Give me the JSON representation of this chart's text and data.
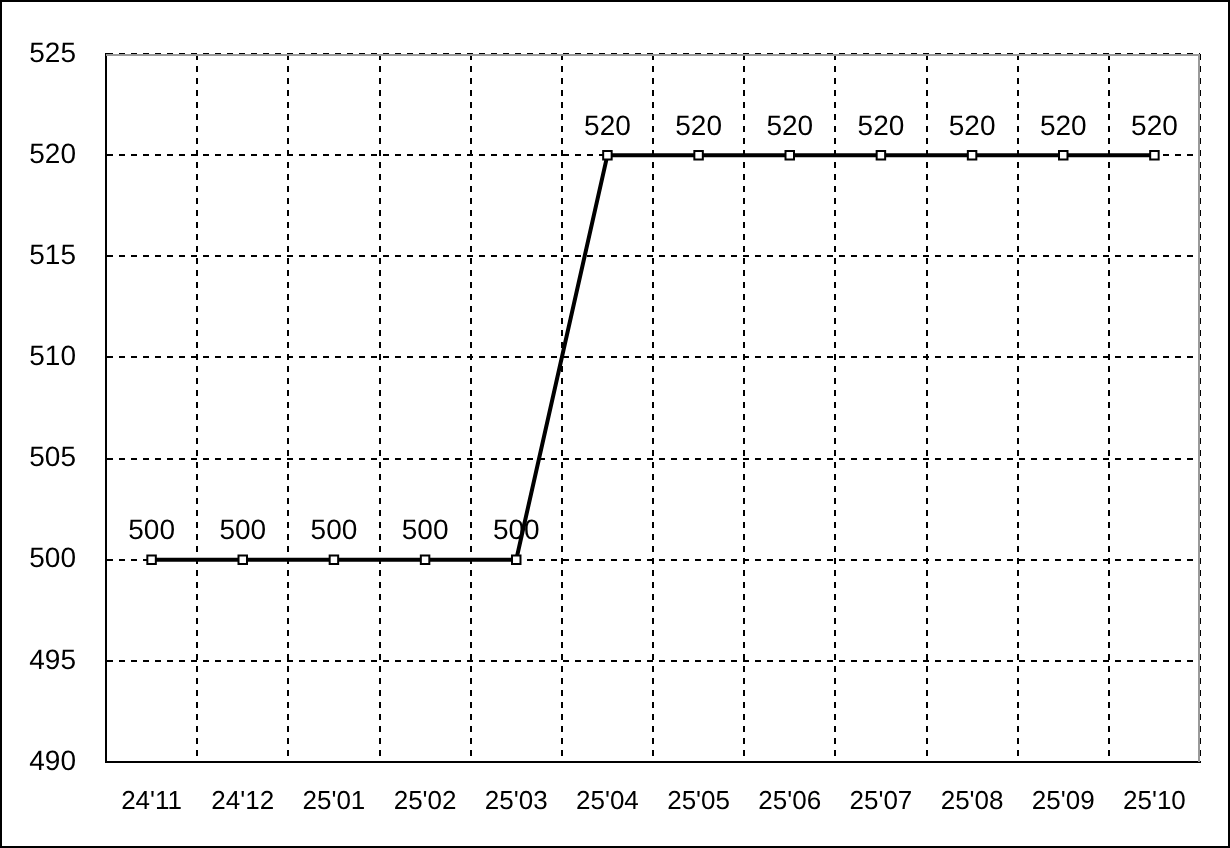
{
  "chart_data": {
    "type": "line",
    "categories": [
      "24'11",
      "24'12",
      "25'01",
      "25'02",
      "25'03",
      "25'04",
      "25'05",
      "25'06",
      "25'07",
      "25'08",
      "25'09",
      "25'10"
    ],
    "values": [
      500,
      500,
      500,
      500,
      500,
      520,
      520,
      520,
      520,
      520,
      520,
      520
    ],
    "color": "#000000",
    "ylim": [
      490,
      525
    ],
    "yticks": [
      490,
      495,
      500,
      505,
      510,
      515,
      520,
      525
    ],
    "grid": true,
    "legend": false,
    "marker": "square",
    "line_style": "solid",
    "data_labels": true
  }
}
